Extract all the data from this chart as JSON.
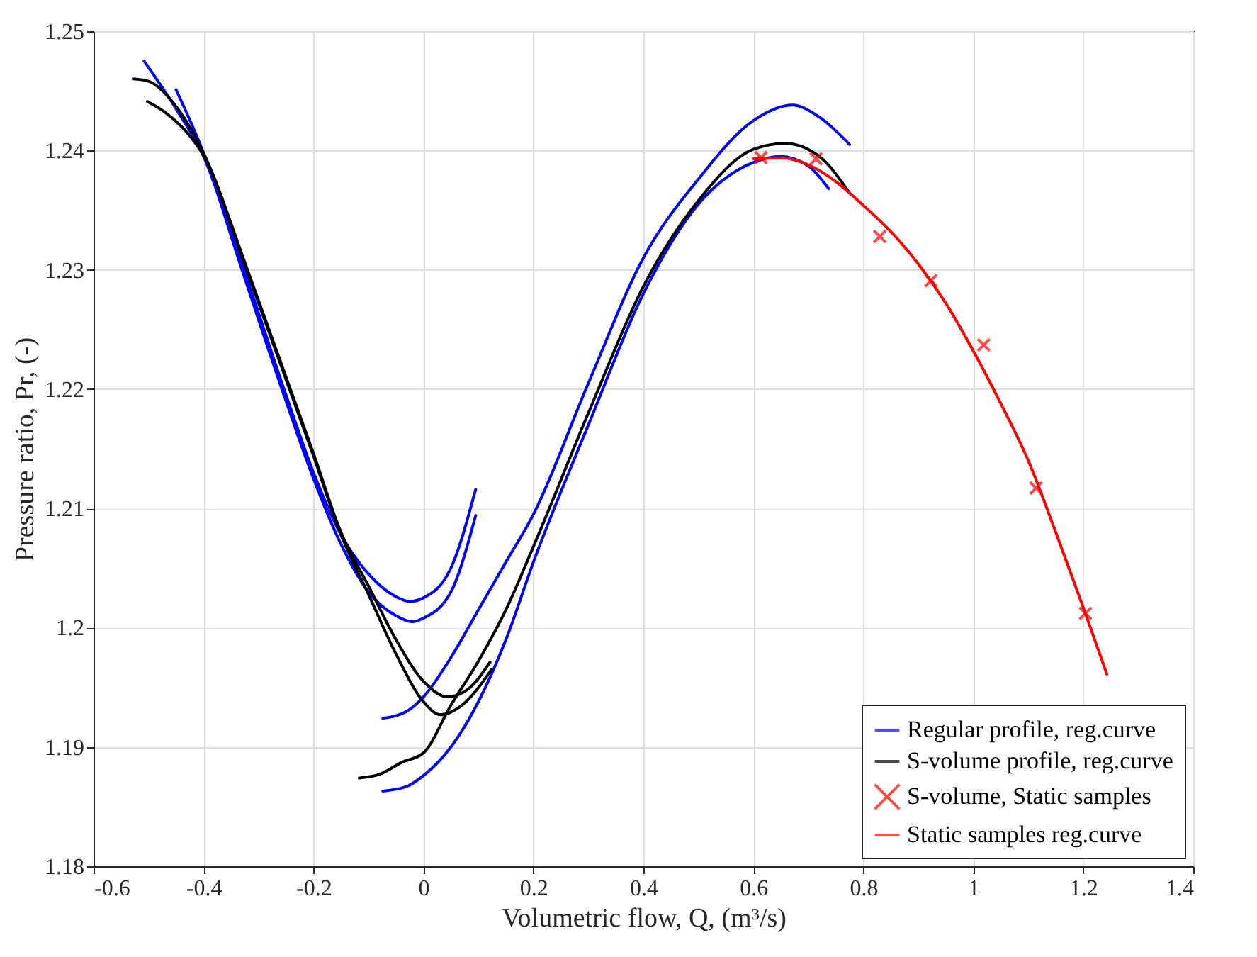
{
  "chart_data": {
    "type": "line",
    "xlabel": "Volumetric flow, Q, (m³/s)",
    "ylabel": "Pressure ratio, Pr, (-)",
    "xlim": [
      -0.6,
      1.4
    ],
    "xticks": [
      -0.6,
      -0.4,
      -0.2,
      0,
      0.2,
      0.4,
      0.6,
      0.8,
      1,
      1.2,
      1.4
    ],
    "ylim": [
      1.18,
      1.25
    ],
    "yticks": [
      1.18,
      1.19,
      1.2,
      1.21,
      1.22,
      1.23,
      1.24,
      1.25
    ],
    "grid": true,
    "legend": "bottom right",
    "line_style": "solid",
    "series": [
      {
        "name": "Regular profile, reg.curve",
        "color": "#0000ff",
        "x": [
          -0.508,
          -0.45,
          -0.4,
          -0.33,
          -0.25,
          -0.2,
          -0.15,
          -0.1,
          -0.05,
          -0.025,
          0,
          0.05,
          0.095
        ],
        "values": [
          1.2475,
          1.2435,
          1.2395,
          1.2305,
          1.2195,
          1.213,
          1.2078,
          1.2045,
          1.2026,
          1.2022,
          1.2025,
          1.205,
          1.2116
        ]
      },
      {
        "color": "#0000ff",
        "x": [
          -0.45,
          -0.4,
          -0.33,
          -0.25,
          -0.2,
          -0.15,
          -0.1,
          -0.05,
          -0.021,
          0,
          0.05,
          0.095
        ],
        "values": [
          1.2451,
          1.2398,
          1.23,
          1.219,
          1.2125,
          1.207,
          1.203,
          1.201,
          1.2005,
          1.2008,
          1.203,
          1.2094
        ]
      },
      {
        "color": "#0000ff",
        "x": [
          -0.074,
          -0.03,
          0,
          0.05,
          0.1,
          0.15,
          0.2,
          0.3,
          0.4,
          0.5,
          0.6,
          0.671,
          0.72,
          0.775
        ],
        "values": [
          1.1924,
          1.193,
          1.1942,
          1.1975,
          1.2015,
          1.2055,
          1.2095,
          1.2205,
          1.231,
          1.2376,
          1.2425,
          1.2438,
          1.2428,
          1.2405
        ]
      },
      {
        "color": "#0000ff",
        "x": [
          -0.074,
          -0.03,
          0,
          0.05,
          0.1,
          0.15,
          0.2,
          0.3,
          0.4,
          0.5,
          0.6,
          0.649,
          0.7,
          0.737
        ],
        "values": [
          1.1863,
          1.1867,
          1.1876,
          1.19,
          1.1938,
          1.199,
          1.2055,
          1.217,
          1.228,
          1.2355,
          1.239,
          1.2395,
          1.2387,
          1.2368
        ]
      },
      {
        "name": "S-volume profile, reg.curve",
        "color": "#000000",
        "x": [
          -0.528,
          -0.5,
          -0.45,
          -0.4,
          -0.32,
          -0.2,
          -0.15,
          -0.1,
          -0.05,
          0,
          0.044,
          0.08,
          0.121
        ],
        "values": [
          1.246,
          1.2458,
          1.2437,
          1.2398,
          1.23,
          1.2146,
          1.208,
          1.2035,
          1.199,
          1.1955,
          1.1942,
          1.1948,
          1.1971
        ]
      },
      {
        "color": "#000000",
        "x": [
          -0.502,
          -0.47,
          -0.43,
          -0.4,
          -0.32,
          -0.2,
          -0.15,
          -0.1,
          -0.05,
          0,
          0.031,
          0.07,
          0.124
        ],
        "values": [
          1.2441,
          1.2432,
          1.2415,
          1.2396,
          1.2298,
          1.2144,
          1.2078,
          1.2028,
          1.1978,
          1.1938,
          1.1927,
          1.1935,
          1.1965
        ]
      },
      {
        "color": "#000000",
        "x": [
          -0.117,
          -0.08,
          -0.04,
          0,
          0.05,
          0.1,
          0.15,
          0.2,
          0.3,
          0.4,
          0.5,
          0.6,
          0.658,
          0.72,
          0.774
        ],
        "values": [
          1.1874,
          1.1877,
          1.1887,
          1.1895,
          1.1935,
          1.1972,
          1.2015,
          1.2068,
          1.218,
          1.2286,
          1.2358,
          1.2401,
          1.2406,
          1.2395,
          1.2365
        ]
      },
      {
        "name": "S-volume, Static samples",
        "type": "scatter",
        "marker": "cross",
        "color": "#ff0000",
        "x": [
          0.614,
          0.714,
          0.83,
          0.923,
          1.019,
          1.114,
          1.204
        ],
        "values": [
          1.2394,
          1.2393,
          1.2328,
          1.2291,
          1.2237,
          1.2117,
          1.2012
        ]
      },
      {
        "name": "Static samples reg.curve",
        "color": "#ff0000",
        "x": [
          0.6,
          0.65,
          0.7,
          0.75,
          0.8,
          0.85,
          0.9,
          0.95,
          1,
          1.05,
          1.1,
          1.15,
          1.2,
          1.243
        ],
        "values": [
          1.2393,
          1.2394,
          1.2388,
          1.2374,
          1.2354,
          1.2332,
          1.2305,
          1.2272,
          1.2232,
          1.2188,
          1.214,
          1.208,
          1.2017,
          1.1961
        ]
      }
    ]
  }
}
